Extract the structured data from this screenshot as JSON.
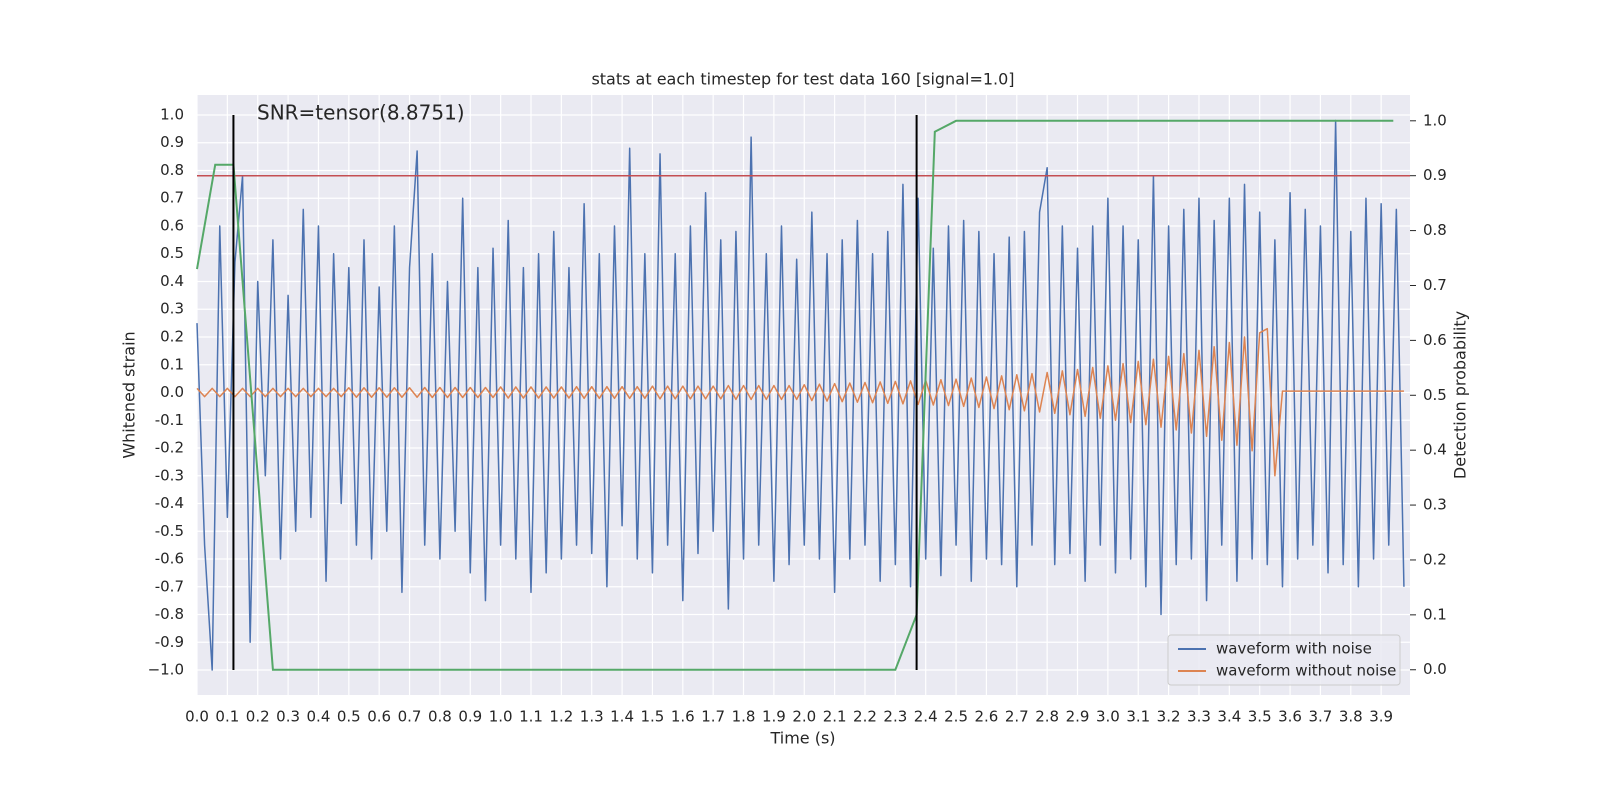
{
  "chart_data": {
    "type": "line",
    "title": "stats at each timestep for test data 160 [signal=1.0]",
    "x_label": "Time (s)",
    "y_label": "Whitened strain",
    "y2_label": "Detection probability",
    "annotation": "SNR=tensor(8.8751)",
    "grid": true,
    "legend": "lower right",
    "xlim": [
      0,
      3.995
    ],
    "ylim": [
      -1.09,
      1.072
    ],
    "y2lim": [
      -0.046,
      1.047
    ],
    "xticks": [
      {
        "value": 0,
        "label": "0.0"
      },
      0.1,
      0.2,
      0.3,
      0.4,
      0.5,
      0.6,
      0.7,
      0.8,
      0.9,
      {
        "value": 1,
        "label": "1.0"
      },
      1.1,
      1.2,
      1.3,
      1.4,
      1.5,
      1.6,
      1.7,
      1.8,
      1.9,
      {
        "value": 2,
        "label": "2.0"
      },
      2.1,
      2.2,
      2.3,
      2.4,
      2.5,
      2.6,
      2.7,
      2.8,
      2.9,
      {
        "value": 3,
        "label": "3.0"
      },
      3.1,
      3.2,
      3.3,
      3.4,
      3.5,
      3.6,
      3.7,
      3.8,
      3.9
    ],
    "yticks": [
      {
        "value": -1,
        "label": "−1.0"
      },
      -0.9,
      -0.8,
      -0.7,
      -0.6,
      -0.5,
      -0.4,
      -0.3,
      -0.2,
      -0.1,
      {
        "value": 0,
        "label": "0.0"
      },
      0.1,
      0.2,
      0.3,
      0.4,
      0.5,
      0.6,
      0.7,
      0.8,
      0.9,
      {
        "value": 1,
        "label": "1.0"
      }
    ],
    "y2ticks": [
      {
        "value": 0,
        "label": "0.0"
      },
      0.1,
      0.2,
      0.3,
      0.4,
      0.5,
      0.6,
      0.7,
      0.8,
      0.9,
      {
        "value": 1,
        "label": "1.0"
      }
    ],
    "x": [
      0,
      0.025,
      0.05,
      0.075,
      0.1,
      0.125,
      0.15,
      0.175,
      0.2,
      0.225,
      0.25,
      0.275,
      0.3,
      0.325,
      0.35,
      0.375,
      0.4,
      0.425,
      0.45,
      0.475,
      0.5,
      0.525,
      0.55,
      0.575,
      0.6,
      0.625,
      0.65,
      0.675,
      0.7,
      0.725,
      0.75,
      0.775,
      0.8,
      0.825,
      0.85,
      0.875,
      0.9,
      0.925,
      0.95,
      0.975,
      1,
      1.025,
      1.05,
      1.075,
      1.1,
      1.125,
      1.15,
      1.175,
      1.2,
      1.225,
      1.25,
      1.275,
      1.3,
      1.325,
      1.35,
      1.375,
      1.4,
      1.425,
      1.45,
      1.475,
      1.5,
      1.525,
      1.55,
      1.575,
      1.6,
      1.625,
      1.65,
      1.675,
      1.7,
      1.725,
      1.75,
      1.775,
      1.8,
      1.825,
      1.85,
      1.875,
      1.9,
      1.925,
      1.95,
      1.975,
      2,
      2.025,
      2.05,
      2.075,
      2.1,
      2.125,
      2.15,
      2.175,
      2.2,
      2.225,
      2.25,
      2.275,
      2.3,
      2.325,
      2.35,
      2.375,
      2.4,
      2.425,
      2.45,
      2.475,
      2.5,
      2.525,
      2.55,
      2.575,
      2.6,
      2.625,
      2.65,
      2.675,
      2.7,
      2.725,
      2.75,
      2.775,
      2.8,
      2.825,
      2.85,
      2.875,
      2.9,
      2.925,
      2.95,
      2.975,
      3,
      3.025,
      3.05,
      3.075,
      3.1,
      3.125,
      3.15,
      3.175,
      3.2,
      3.225,
      3.25,
      3.275,
      3.3,
      3.325,
      3.35,
      3.375,
      3.4,
      3.425,
      3.45,
      3.475,
      3.5,
      3.525,
      3.55,
      3.575,
      3.6,
      3.625,
      3.65,
      3.675,
      3.7,
      3.725,
      3.75,
      3.775,
      3.8,
      3.825,
      3.85,
      3.875,
      3.9,
      3.925,
      3.95,
      3.975
    ],
    "series": [
      {
        "name": "waveform with noise",
        "color": "#4c72b0",
        "values": [
          0.25,
          -0.55,
          -1.0,
          0.6,
          -0.45,
          0.47,
          0.78,
          -0.9,
          0.4,
          -0.3,
          0.55,
          -0.6,
          0.35,
          -0.5,
          0.66,
          -0.45,
          0.6,
          -0.68,
          0.5,
          -0.4,
          0.45,
          -0.55,
          0.55,
          -0.6,
          0.38,
          -0.5,
          0.6,
          -0.72,
          0.45,
          0.87,
          -0.55,
          0.5,
          -0.6,
          0.4,
          -0.5,
          0.7,
          -0.65,
          0.45,
          -0.75,
          0.52,
          -0.55,
          0.62,
          -0.6,
          0.45,
          -0.72,
          0.5,
          -0.65,
          0.58,
          -0.6,
          0.45,
          -0.55,
          0.68,
          -0.58,
          0.5,
          -0.7,
          0.6,
          -0.48,
          0.88,
          -0.6,
          0.5,
          -0.65,
          0.86,
          -0.55,
          0.5,
          -0.75,
          0.6,
          -0.58,
          0.72,
          -0.5,
          0.55,
          -0.78,
          0.58,
          -0.6,
          0.92,
          -0.55,
          0.5,
          -0.68,
          0.6,
          -0.62,
          0.48,
          -0.55,
          0.65,
          -0.6,
          0.5,
          -0.72,
          0.55,
          -0.6,
          0.62,
          -0.55,
          0.5,
          -0.68,
          0.58,
          -0.62,
          0.75,
          -0.7,
          0.7,
          -0.6,
          0.52,
          -0.66,
          0.6,
          -0.55,
          0.62,
          -0.68,
          0.58,
          -0.6,
          0.5,
          -0.62,
          0.56,
          -0.7,
          0.58,
          -0.55,
          0.65,
          0.81,
          -0.62,
          0.6,
          -0.58,
          0.52,
          -0.68,
          0.6,
          -0.55,
          0.7,
          -0.65,
          0.6,
          -0.6,
          0.55,
          -0.7,
          0.78,
          -0.8,
          0.6,
          -0.62,
          0.66,
          -0.6,
          0.7,
          -0.75,
          0.62,
          -0.55,
          0.7,
          -0.68,
          0.75,
          -0.6,
          0.65,
          -0.62,
          0.55,
          -0.7,
          0.72,
          -0.6,
          0.66,
          -0.55,
          0.6,
          -0.65,
          0.98,
          -0.62,
          0.58,
          -0.7,
          0.7,
          -0.6,
          0.68,
          -0.55,
          0.66,
          -0.7
        ]
      },
      {
        "name": "waveform without noise",
        "color": "#dd8452",
        "values": [
          0.015,
          -0.015,
          0.015,
          -0.015,
          0.015,
          -0.015,
          0.015,
          -0.015,
          0.015,
          -0.015,
          0.015,
          -0.015,
          0.015,
          -0.015,
          0.015,
          -0.015,
          0.015,
          -0.015,
          0.015,
          -0.015,
          0.017,
          -0.017,
          0.017,
          -0.017,
          0.017,
          -0.017,
          0.017,
          -0.017,
          0.017,
          -0.017,
          0.018,
          -0.018,
          0.018,
          -0.018,
          0.018,
          -0.018,
          0.018,
          -0.018,
          0.018,
          -0.018,
          0.02,
          -0.02,
          0.02,
          -0.02,
          0.02,
          -0.02,
          0.02,
          -0.02,
          0.02,
          -0.02,
          0.021,
          -0.021,
          0.021,
          -0.021,
          0.021,
          -0.021,
          0.021,
          -0.021,
          0.021,
          -0.021,
          0.023,
          -0.023,
          0.023,
          -0.023,
          0.023,
          -0.023,
          0.023,
          -0.023,
          0.023,
          -0.023,
          0.025,
          -0.025,
          0.025,
          -0.025,
          0.025,
          -0.025,
          0.025,
          -0.025,
          0.025,
          -0.025,
          0.028,
          -0.029,
          0.03,
          -0.031,
          0.032,
          -0.033,
          0.034,
          -0.035,
          0.036,
          -0.037,
          0.038,
          -0.039,
          0.04,
          -0.041,
          0.042,
          -0.043,
          0.044,
          -0.045,
          0.046,
          -0.047,
          0.048,
          -0.05,
          0.052,
          -0.054,
          0.056,
          -0.058,
          0.06,
          -0.062,
          0.064,
          -0.066,
          0.068,
          -0.07,
          0.072,
          -0.075,
          0.078,
          -0.08,
          0.083,
          -0.086,
          0.09,
          -0.093,
          0.096,
          -0.1,
          0.104,
          -0.108,
          0.112,
          -0.116,
          0.12,
          -0.125,
          0.13,
          -0.135,
          0.14,
          -0.146,
          0.152,
          -0.158,
          0.165,
          -0.172,
          0.18,
          -0.19,
          0.2,
          -0.21,
          0.215,
          0.23,
          -0.3,
          0.005,
          0.005,
          0.005,
          0.005,
          0.005,
          0.005,
          0.005,
          0.005,
          0.005,
          0.005,
          0.005,
          0.005,
          0.005,
          0.005,
          0.005,
          0.005,
          0.005
        ]
      }
    ],
    "detection": {
      "axis": "y2",
      "color": "#55a868",
      "x": [
        0,
        0.06,
        0.12,
        0.25,
        0.3,
        2.3,
        2.37,
        2.43,
        2.5,
        3.94
      ],
      "values": [
        0.73,
        0.92,
        0.92,
        0,
        0,
        0,
        0.1,
        0.98,
        1,
        1
      ]
    },
    "threshold": {
      "axis": "y2",
      "color": "#c44e52",
      "value": 0.9
    },
    "vlines": {
      "color": "#000000",
      "x": [
        0.12,
        2.37
      ]
    }
  }
}
